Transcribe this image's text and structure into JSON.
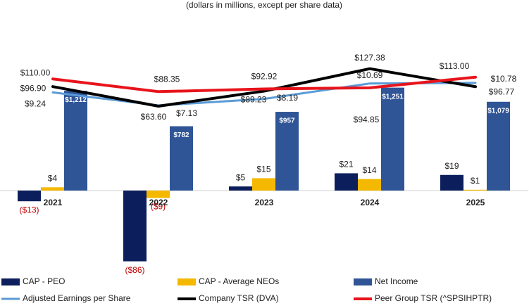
{
  "chart_data": {
    "type": "bar-line",
    "title": "(dollars in millions, except per share data)",
    "categories": [
      "2021",
      "2022",
      "2023",
      "2024",
      "2025"
    ],
    "ylim": [
      -100,
      200
    ],
    "y2lim": [
      -1000,
      2000
    ],
    "y3lim": [
      -20,
      20
    ],
    "y4lim": [
      -220,
      200
    ],
    "legend": "bottom",
    "series": [
      {
        "name": "CAP - PEO",
        "kind": "bar",
        "color": "#0c1f5c",
        "values": [
          -13,
          -86,
          5,
          21,
          19
        ],
        "value_labels": [
          "($13)",
          "($86)",
          "$5",
          "$21",
          "$19"
        ]
      },
      {
        "name": "CAP -  Average NEOs",
        "kind": "bar",
        "color": "#f5b800",
        "values": [
          4,
          -9,
          15,
          14,
          1
        ],
        "value_labels": [
          "$4",
          "($9)",
          "$15",
          "$14",
          "$1"
        ]
      },
      {
        "name": "Net Income",
        "kind": "bar",
        "axis": "y2",
        "color": "#2f5597",
        "values": [
          1212,
          782,
          957,
          1251,
          1079
        ],
        "value_labels": [
          "$1,212",
          "$782",
          "$957",
          "$1,251",
          "$1,079"
        ]
      },
      {
        "name": "Adjusted Earnings per Share",
        "kind": "line",
        "axis": "y3",
        "color": "#5b9bd5",
        "values": [
          9.24,
          7.13,
          8.19,
          10.69,
          10.78
        ],
        "value_labels": [
          "$9.24",
          "$7.13",
          "$8.19",
          "$10.69",
          "$10.78"
        ]
      },
      {
        "name": "Company TSR (DVA)",
        "kind": "line",
        "axis": "y4",
        "color": "#000000",
        "values": [
          96.9,
          63.6,
          89.23,
          127.38,
          96.77
        ],
        "value_labels": [
          "$96.90",
          "$63.60",
          "$89.23",
          "$127.38",
          "$96.77"
        ]
      },
      {
        "name": "Peer Group TSR (^SPSIHPTR)",
        "kind": "line",
        "axis": "y4",
        "color": "#e8141b",
        "values": [
          110.0,
          88.35,
          92.92,
          94.85,
          113.0
        ],
        "value_labels": [
          "$110.00",
          "$88.35",
          "$92.92",
          "$94.85",
          "$113.00"
        ]
      }
    ]
  }
}
